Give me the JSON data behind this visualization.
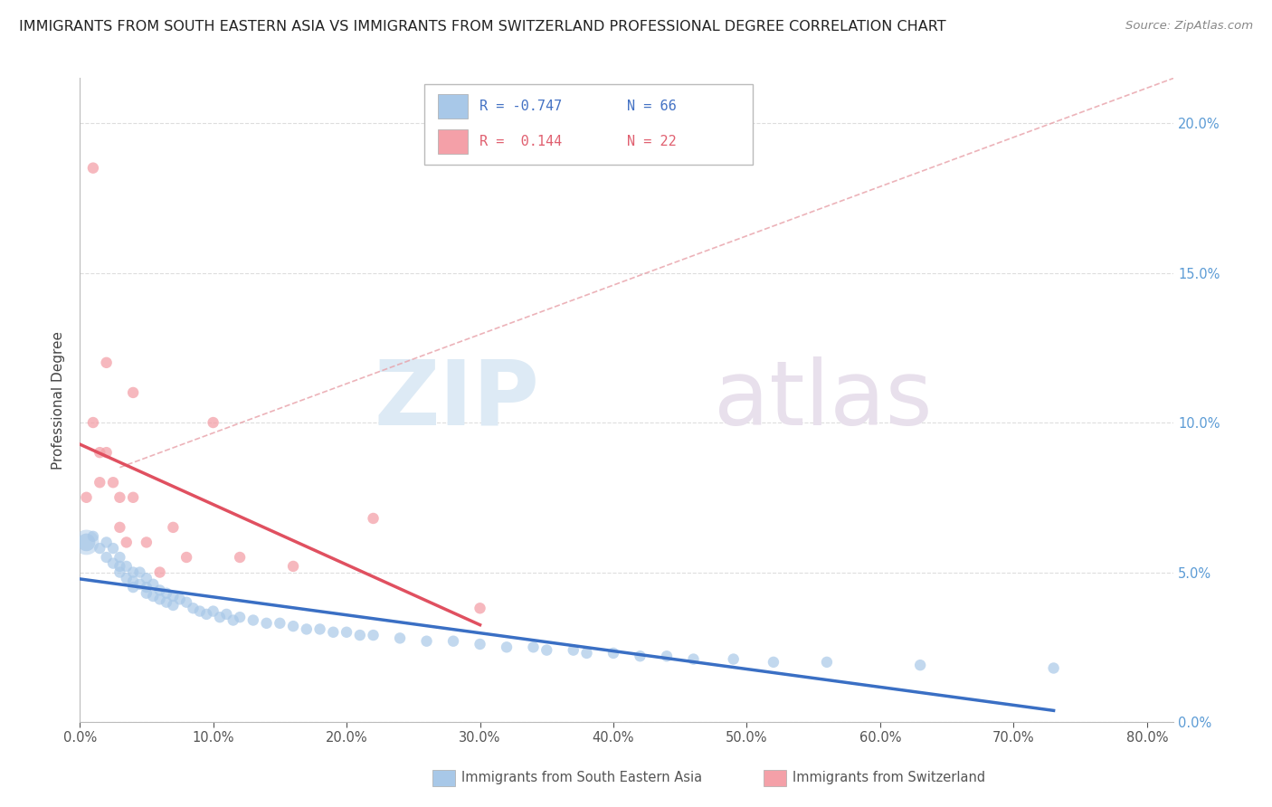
{
  "title": "IMMIGRANTS FROM SOUTH EASTERN ASIA VS IMMIGRANTS FROM SWITZERLAND PROFESSIONAL DEGREE CORRELATION CHART",
  "source": "Source: ZipAtlas.com",
  "ylabel": "Professional Degree",
  "legend_labels": [
    "Immigrants from South Eastern Asia",
    "Immigrants from Switzerland"
  ],
  "r_blue": -0.747,
  "n_blue": 66,
  "r_pink": 0.144,
  "n_pink": 22,
  "blue_color": "#A8C8E8",
  "pink_color": "#F4A0A8",
  "blue_line_color": "#3A6FC4",
  "pink_line_color": "#E05060",
  "dash_line_color": "#D0A0A0",
  "xlim": [
    0.0,
    0.82
  ],
  "ylim": [
    0.0,
    0.215
  ],
  "xticks": [
    0.0,
    0.1,
    0.2,
    0.3,
    0.4,
    0.5,
    0.6,
    0.7,
    0.8
  ],
  "yticks": [
    0.0,
    0.05,
    0.1,
    0.15,
    0.2
  ],
  "blue_scatter_x": [
    0.005,
    0.01,
    0.015,
    0.02,
    0.02,
    0.025,
    0.025,
    0.03,
    0.03,
    0.03,
    0.035,
    0.035,
    0.04,
    0.04,
    0.04,
    0.045,
    0.045,
    0.05,
    0.05,
    0.05,
    0.055,
    0.055,
    0.06,
    0.06,
    0.065,
    0.065,
    0.07,
    0.07,
    0.075,
    0.08,
    0.085,
    0.09,
    0.095,
    0.1,
    0.105,
    0.11,
    0.115,
    0.12,
    0.13,
    0.14,
    0.15,
    0.16,
    0.17,
    0.18,
    0.19,
    0.2,
    0.21,
    0.22,
    0.24,
    0.26,
    0.28,
    0.3,
    0.32,
    0.34,
    0.35,
    0.37,
    0.38,
    0.4,
    0.42,
    0.44,
    0.46,
    0.49,
    0.52,
    0.56,
    0.63,
    0.73
  ],
  "blue_scatter_y": [
    0.06,
    0.062,
    0.058,
    0.06,
    0.055,
    0.058,
    0.053,
    0.055,
    0.052,
    0.05,
    0.052,
    0.048,
    0.05,
    0.047,
    0.045,
    0.05,
    0.046,
    0.048,
    0.045,
    0.043,
    0.046,
    0.042,
    0.044,
    0.041,
    0.043,
    0.04,
    0.042,
    0.039,
    0.041,
    0.04,
    0.038,
    0.037,
    0.036,
    0.037,
    0.035,
    0.036,
    0.034,
    0.035,
    0.034,
    0.033,
    0.033,
    0.032,
    0.031,
    0.031,
    0.03,
    0.03,
    0.029,
    0.029,
    0.028,
    0.027,
    0.027,
    0.026,
    0.025,
    0.025,
    0.024,
    0.024,
    0.023,
    0.023,
    0.022,
    0.022,
    0.021,
    0.021,
    0.02,
    0.02,
    0.019,
    0.018
  ],
  "blue_scatter_size": [
    200,
    80,
    80,
    80,
    80,
    80,
    80,
    80,
    80,
    80,
    80,
    80,
    80,
    80,
    80,
    80,
    80,
    80,
    80,
    80,
    80,
    80,
    80,
    80,
    80,
    80,
    80,
    80,
    80,
    80,
    80,
    80,
    80,
    80,
    80,
    80,
    80,
    80,
    80,
    80,
    80,
    80,
    80,
    80,
    80,
    80,
    80,
    80,
    80,
    80,
    80,
    80,
    80,
    80,
    80,
    80,
    80,
    80,
    80,
    80,
    80,
    80,
    80,
    80,
    80,
    80
  ],
  "pink_scatter_x": [
    0.005,
    0.01,
    0.01,
    0.015,
    0.015,
    0.02,
    0.02,
    0.025,
    0.03,
    0.03,
    0.035,
    0.04,
    0.04,
    0.05,
    0.06,
    0.07,
    0.08,
    0.1,
    0.12,
    0.16,
    0.22,
    0.3
  ],
  "pink_scatter_y": [
    0.075,
    0.185,
    0.1,
    0.09,
    0.08,
    0.12,
    0.09,
    0.08,
    0.075,
    0.065,
    0.06,
    0.11,
    0.075,
    0.06,
    0.05,
    0.065,
    0.055,
    0.1,
    0.055,
    0.052,
    0.068,
    0.038
  ],
  "pink_scatter_size": [
    80,
    80,
    80,
    80,
    80,
    80,
    80,
    80,
    80,
    80,
    80,
    80,
    80,
    80,
    80,
    80,
    80,
    80,
    80,
    80,
    80,
    80
  ]
}
